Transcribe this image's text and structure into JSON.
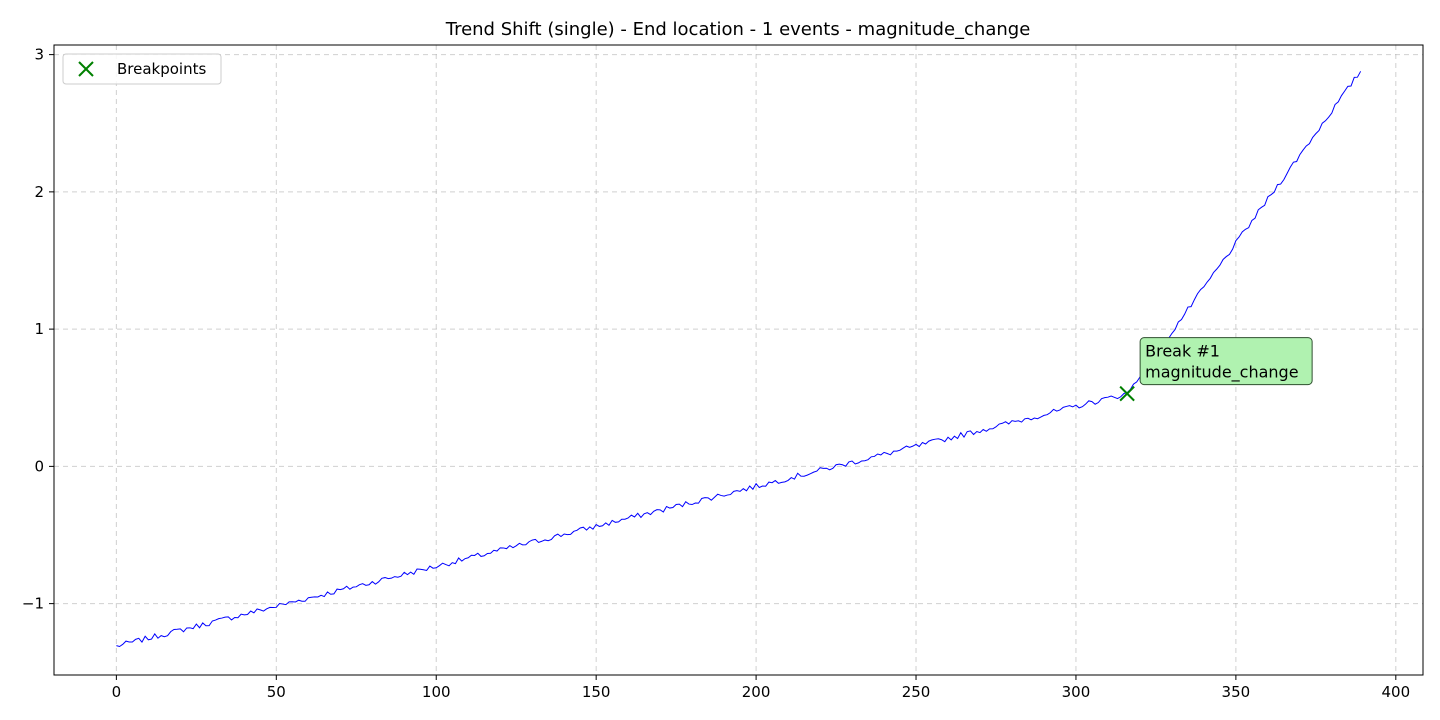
{
  "chart_data": {
    "type": "line",
    "title": "Trend Shift (single) - End location - 1 events - magnitude_change",
    "xlabel": "",
    "ylabel": "",
    "xlim": [
      -19.5,
      408.5
    ],
    "ylim": [
      -1.52,
      3.07
    ],
    "xticks": [
      0,
      50,
      100,
      150,
      200,
      250,
      300,
      350,
      400
    ],
    "xtick_labels": [
      "0",
      "50",
      "100",
      "150",
      "200",
      "250",
      "300",
      "350",
      "400"
    ],
    "yticks": [
      -1,
      0,
      1,
      2,
      3
    ],
    "ytick_labels": [
      "−1",
      "0",
      "1",
      "2",
      "3"
    ],
    "grid": true,
    "legend": {
      "placement": "upper-left",
      "entries": [
        {
          "label": "Breakpoints",
          "marker": "x",
          "color": "#008000"
        }
      ]
    },
    "series": [
      {
        "color": "#0000ff",
        "x_start": 0,
        "x_end": 389,
        "y_start": -1.31,
        "y_at_break": 0.53,
        "y_end": 2.88,
        "noise_amplitude": 0.02
      }
    ],
    "breakpoints": [
      {
        "x": 316,
        "y": 0.53,
        "label_line1": "Break #1",
        "label_line2": "magnitude_change"
      }
    ],
    "colors": {
      "line": "#0000ff",
      "breakpoint": "#008000",
      "annotation_bg": "#b0f2b0"
    }
  }
}
